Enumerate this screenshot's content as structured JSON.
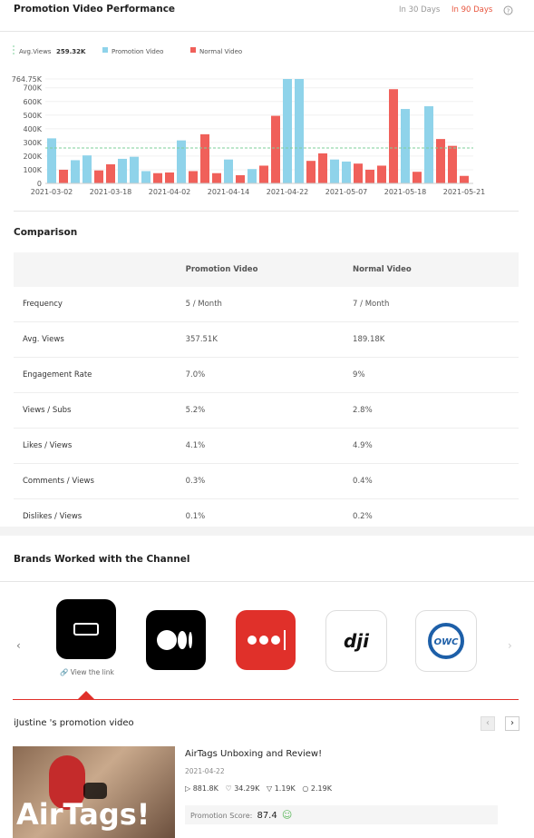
{
  "header": {
    "title": "Promotion Video Performance",
    "tabs": [
      "In 30 Days",
      "In 90 Days"
    ]
  },
  "chart_data": {
    "type": "bar",
    "average": {
      "name": "Avg.Views",
      "value": 259320,
      "label": "259.32K",
      "color": "#7ccf9a"
    },
    "categories": [
      "2021-03-02",
      null,
      null,
      null,
      null,
      "2021-03-18",
      null,
      null,
      null,
      null,
      "2021-04-02",
      null,
      null,
      null,
      null,
      "2021-04-14",
      null,
      null,
      null,
      null,
      "2021-04-22",
      null,
      null,
      null,
      null,
      "2021-05-07",
      null,
      null,
      null,
      null,
      "2021-05-18",
      null,
      null,
      null,
      null,
      "2021-05-21"
    ],
    "series": [
      {
        "name": "Promotion Video",
        "color": "#8fd3ea",
        "values": [
          330000,
          null,
          170000,
          205000,
          null,
          null,
          180000,
          195000,
          90000,
          null,
          null,
          315000,
          null,
          null,
          null,
          175000,
          null,
          105000,
          null,
          null,
          764750,
          764750,
          null,
          null,
          175000,
          160000,
          null,
          null,
          null,
          null,
          545000,
          null,
          565000,
          null,
          null,
          null
        ]
      },
      {
        "name": "Normal Video",
        "color": "#f0605a",
        "values": [
          null,
          100000,
          null,
          null,
          95000,
          140000,
          null,
          null,
          null,
          75000,
          80000,
          null,
          90000,
          360000,
          75000,
          null,
          60000,
          null,
          130000,
          495000,
          null,
          null,
          165000,
          220000,
          null,
          null,
          145000,
          100000,
          130000,
          690000,
          null,
          85000,
          null,
          325000,
          275000,
          55000
        ]
      }
    ],
    "ylim": [
      0,
      764750
    ],
    "yticks": [
      0,
      {
        "value": 100000,
        "label": "100K"
      },
      {
        "value": 200000,
        "label": "200K"
      },
      {
        "value": 300000,
        "label": "300K"
      },
      {
        "value": 400000,
        "label": "400K"
      },
      {
        "value": 500000,
        "label": "500K"
      },
      {
        "value": 600000,
        "label": "600K"
      },
      {
        "value": 700000,
        "label": "700K"
      },
      {
        "value": 764750,
        "label": "764.75K"
      }
    ],
    "grid": true
  },
  "comparison": {
    "title": "Comparison",
    "columns": [
      "Promotion Video",
      "Normal Video"
    ],
    "rows": [
      [
        "Frequency",
        "5 / Month",
        "7 / Month"
      ],
      [
        "Avg. Views",
        "357.51K",
        "189.18K"
      ],
      [
        "Engagement Rate",
        "7.0%",
        "9%"
      ],
      [
        "Views / Subs",
        "5.2%",
        "2.8%"
      ],
      [
        "Likes / Views",
        "4.1%",
        "4.9%"
      ],
      [
        "Comments / Views",
        "0.3%",
        "0.4%"
      ],
      [
        "Dislikes / Views",
        "0.1%",
        "0.2%"
      ]
    ]
  },
  "brands": {
    "title": "Brands Worked with the Channel",
    "link_text": "View the link",
    "logo_texts": [
      "dji",
      "OWC"
    ]
  },
  "video_section": {
    "title": "iJustine 's promotion video",
    "video": {
      "thumbnail_text": "AirTags!",
      "title": "AirTags Unboxing and Review!",
      "date": "2021-04-22",
      "views": "881.8K",
      "likes": "34.29K",
      "dislikes": "1.19K",
      "comments": "2.19K",
      "score_label": "Promotion Score:",
      "score": 87.4
    }
  }
}
